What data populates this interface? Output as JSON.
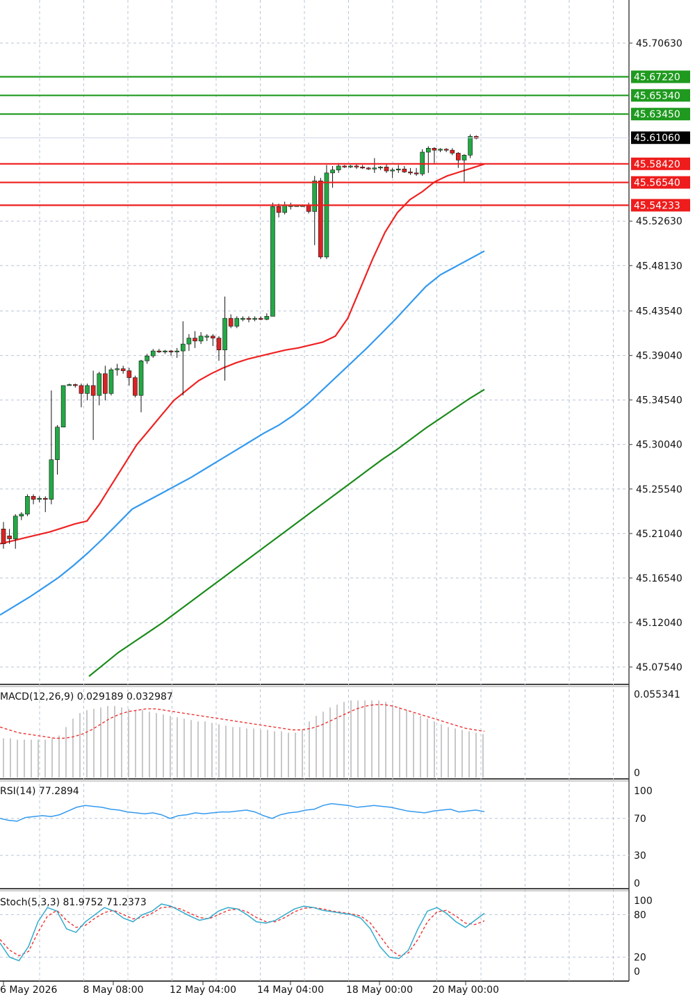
{
  "chart_data": {
    "type": "candlestick",
    "main": {
      "price_ticks": [
        "45.70630",
        "45.52630",
        "45.48130",
        "45.43540",
        "45.39040",
        "45.34540",
        "45.30040",
        "45.25540",
        "45.21040",
        "45.16540",
        "45.12040",
        "45.07540"
      ],
      "ylim": [
        45.05,
        45.75
      ],
      "candles": [
        {
          "o": 45.215,
          "h": 45.222,
          "l": 45.195,
          "c": 45.2
        },
        {
          "o": 45.208,
          "h": 45.215,
          "l": 45.2,
          "c": 45.205
        },
        {
          "o": 45.205,
          "h": 45.23,
          "l": 45.195,
          "c": 45.228
        },
        {
          "o": 45.228,
          "h": 45.232,
          "l": 45.224,
          "c": 45.23
        },
        {
          "o": 45.23,
          "h": 45.25,
          "l": 45.228,
          "c": 45.248
        },
        {
          "o": 45.248,
          "h": 45.25,
          "l": 45.24,
          "c": 45.245
        },
        {
          "o": 45.245,
          "h": 45.248,
          "l": 45.242,
          "c": 45.246
        },
        {
          "o": 45.246,
          "h": 45.248,
          "l": 45.232,
          "c": 45.245
        },
        {
          "o": 45.245,
          "h": 45.355,
          "l": 45.24,
          "c": 45.285
        },
        {
          "o": 45.285,
          "h": 45.32,
          "l": 45.27,
          "c": 45.318
        },
        {
          "o": 45.318,
          "h": 45.36,
          "l": 45.318,
          "c": 45.36
        },
        {
          "o": 45.36,
          "h": 45.362,
          "l": 45.36,
          "c": 45.361
        },
        {
          "o": 45.361,
          "h": 45.362,
          "l": 45.358,
          "c": 45.36
        },
        {
          "o": 45.36,
          "h": 45.362,
          "l": 45.338,
          "c": 45.352
        },
        {
          "o": 45.352,
          "h": 45.362,
          "l": 45.345,
          "c": 45.36
        },
        {
          "o": 45.36,
          "h": 45.375,
          "l": 45.305,
          "c": 45.35
        },
        {
          "o": 45.35,
          "h": 45.374,
          "l": 45.34,
          "c": 45.372
        },
        {
          "o": 45.372,
          "h": 45.38,
          "l": 45.345,
          "c": 45.352
        },
        {
          "o": 45.352,
          "h": 45.378,
          "l": 45.35,
          "c": 45.376
        },
        {
          "o": 45.376,
          "h": 45.382,
          "l": 45.37,
          "c": 45.377
        },
        {
          "o": 45.377,
          "h": 45.38,
          "l": 45.372,
          "c": 45.375
        },
        {
          "o": 45.375,
          "h": 45.378,
          "l": 45.36,
          "c": 45.368
        },
        {
          "o": 45.368,
          "h": 45.37,
          "l": 45.348,
          "c": 45.35
        },
        {
          "o": 45.35,
          "h": 45.386,
          "l": 45.333,
          "c": 45.385
        },
        {
          "o": 45.385,
          "h": 45.392,
          "l": 45.382,
          "c": 45.39
        },
        {
          "o": 45.39,
          "h": 45.397,
          "l": 45.388,
          "c": 45.395
        },
        {
          "o": 45.395,
          "h": 45.397,
          "l": 45.393,
          "c": 45.394
        },
        {
          "o": 45.394,
          "h": 45.396,
          "l": 45.392,
          "c": 45.395
        },
        {
          "o": 45.395,
          "h": 45.396,
          "l": 45.39,
          "c": 45.394
        },
        {
          "o": 45.394,
          "h": 45.398,
          "l": 45.388,
          "c": 45.395
        },
        {
          "o": 45.395,
          "h": 45.425,
          "l": 45.35,
          "c": 45.402
        },
        {
          "o": 45.402,
          "h": 45.412,
          "l": 45.395,
          "c": 45.408
        },
        {
          "o": 45.408,
          "h": 45.415,
          "l": 45.398,
          "c": 45.405
        },
        {
          "o": 45.405,
          "h": 45.414,
          "l": 45.402,
          "c": 45.41
        },
        {
          "o": 45.41,
          "h": 45.412,
          "l": 45.405,
          "c": 45.41
        },
        {
          "o": 45.41,
          "h": 45.412,
          "l": 45.4,
          "c": 45.408
        },
        {
          "o": 45.408,
          "h": 45.41,
          "l": 45.385,
          "c": 45.396
        },
        {
          "o": 45.396,
          "h": 45.45,
          "l": 45.365,
          "c": 45.428
        },
        {
          "o": 45.428,
          "h": 45.432,
          "l": 45.418,
          "c": 45.42
        },
        {
          "o": 45.42,
          "h": 45.43,
          "l": 45.418,
          "c": 45.428
        },
        {
          "o": 45.428,
          "h": 45.43,
          "l": 45.425,
          "c": 45.428
        },
        {
          "o": 45.428,
          "h": 45.43,
          "l": 45.424,
          "c": 45.427
        },
        {
          "o": 45.427,
          "h": 45.43,
          "l": 45.425,
          "c": 45.428
        },
        {
          "o": 45.428,
          "h": 45.43,
          "l": 45.426,
          "c": 45.427
        },
        {
          "o": 45.427,
          "h": 45.433,
          "l": 45.426,
          "c": 45.43
        },
        {
          "o": 45.43,
          "h": 45.545,
          "l": 45.43,
          "c": 45.541
        },
        {
          "o": 45.541,
          "h": 45.544,
          "l": 45.53,
          "c": 45.535
        },
        {
          "o": 45.535,
          "h": 45.546,
          "l": 45.533,
          "c": 45.542
        },
        {
          "o": 45.542,
          "h": 45.545,
          "l": 45.538,
          "c": 45.542
        },
        {
          "o": 45.542,
          "h": 45.543,
          "l": 45.541,
          "c": 45.542
        },
        {
          "o": 45.542,
          "h": 45.543,
          "l": 45.541,
          "c": 45.542
        },
        {
          "o": 45.542,
          "h": 45.545,
          "l": 45.534,
          "c": 45.536
        },
        {
          "o": 45.536,
          "h": 45.572,
          "l": 45.502,
          "c": 45.567
        },
        {
          "o": 45.567,
          "h": 45.57,
          "l": 45.488,
          "c": 45.49
        },
        {
          "o": 45.49,
          "h": 45.583,
          "l": 45.488,
          "c": 45.575
        },
        {
          "o": 45.575,
          "h": 45.582,
          "l": 45.56,
          "c": 45.578
        },
        {
          "o": 45.578,
          "h": 45.585,
          "l": 45.575,
          "c": 45.582
        },
        {
          "o": 45.582,
          "h": 45.583,
          "l": 45.58,
          "c": 45.581
        },
        {
          "o": 45.581,
          "h": 45.583,
          "l": 45.58,
          "c": 45.582
        },
        {
          "o": 45.582,
          "h": 45.584,
          "l": 45.579,
          "c": 45.581
        },
        {
          "o": 45.581,
          "h": 45.583,
          "l": 45.579,
          "c": 45.58
        },
        {
          "o": 45.58,
          "h": 45.581,
          "l": 45.578,
          "c": 45.579
        },
        {
          "o": 45.579,
          "h": 45.59,
          "l": 45.575,
          "c": 45.58
        },
        {
          "o": 45.58,
          "h": 45.582,
          "l": 45.578,
          "c": 45.581
        },
        {
          "o": 45.581,
          "h": 45.584,
          "l": 45.575,
          "c": 45.577
        },
        {
          "o": 45.577,
          "h": 45.58,
          "l": 45.57,
          "c": 45.578
        },
        {
          "o": 45.578,
          "h": 45.583,
          "l": 45.575,
          "c": 45.579
        },
        {
          "o": 45.579,
          "h": 45.582,
          "l": 45.575,
          "c": 45.576
        },
        {
          "o": 45.576,
          "h": 45.58,
          "l": 45.573,
          "c": 45.575
        },
        {
          "o": 45.575,
          "h": 45.58,
          "l": 45.572,
          "c": 45.574
        },
        {
          "o": 45.574,
          "h": 45.599,
          "l": 45.572,
          "c": 45.596
        },
        {
          "o": 45.596,
          "h": 45.602,
          "l": 45.575,
          "c": 45.6
        },
        {
          "o": 45.6,
          "h": 45.601,
          "l": 45.585,
          "c": 45.598
        },
        {
          "o": 45.598,
          "h": 45.6,
          "l": 45.596,
          "c": 45.599
        },
        {
          "o": 45.599,
          "h": 45.6,
          "l": 45.596,
          "c": 45.598
        },
        {
          "o": 45.598,
          "h": 45.6,
          "l": 45.593,
          "c": 45.595
        },
        {
          "o": 45.595,
          "h": 45.596,
          "l": 45.58,
          "c": 45.588
        },
        {
          "o": 45.588,
          "h": 45.594,
          "l": 45.565,
          "c": 45.593
        },
        {
          "o": 45.593,
          "h": 45.614,
          "l": 45.59,
          "c": 45.612
        },
        {
          "o": 45.612,
          "h": 45.613,
          "l": 45.609,
          "c": 45.61
        }
      ],
      "ma_red": [
        45.2,
        45.203,
        45.206,
        45.209,
        45.212,
        45.216,
        45.22,
        45.223,
        45.24,
        45.26,
        45.28,
        45.3,
        45.315,
        45.33,
        45.345,
        45.355,
        45.365,
        45.372,
        45.378,
        45.383,
        45.387,
        45.39,
        45.393,
        45.396,
        45.398,
        45.401,
        45.404,
        45.41,
        45.428,
        45.458,
        45.488,
        45.515,
        45.535,
        45.548,
        45.556,
        45.566,
        45.572,
        45.576,
        45.58,
        45.584
      ],
      "ma_blue": [
        45.128,
        45.137,
        45.146,
        45.156,
        45.166,
        45.178,
        45.191,
        45.205,
        45.22,
        45.235,
        45.243,
        45.251,
        45.259,
        45.267,
        45.276,
        45.285,
        45.294,
        45.303,
        45.312,
        45.32,
        45.33,
        45.342,
        45.356,
        45.37,
        45.384,
        45.398,
        45.413,
        45.428,
        45.444,
        45.46,
        45.472,
        45.48,
        45.488,
        45.496
      ],
      "ma_green": [
        45.066,
        45.078,
        45.09,
        45.1,
        45.11,
        45.12,
        45.131,
        45.142,
        45.153,
        45.164,
        45.175,
        45.186,
        45.197,
        45.208,
        45.219,
        45.23,
        45.241,
        45.252,
        45.263,
        45.274,
        45.285,
        45.295,
        45.306,
        45.317,
        45.327,
        45.337,
        45.347,
        45.356
      ],
      "green_levels": [
        {
          "value": 45.6722,
          "label": "45.67220"
        },
        {
          "value": 45.6534,
          "label": "45.65340"
        },
        {
          "value": 45.6345,
          "label": "45.63450"
        }
      ],
      "red_levels": [
        {
          "value": 45.5842,
          "label": "45.58420"
        },
        {
          "value": 45.5654,
          "label": "45.56540"
        },
        {
          "value": 45.54233,
          "label": "45.54233"
        }
      ],
      "current": {
        "value": 45.6106,
        "label": "45.61060"
      }
    },
    "macd": {
      "title": "MACD(12,26,9) 0.029189 0.032987",
      "ticks": [
        "0.055341",
        "0"
      ],
      "ylim": [
        0,
        0.062
      ],
      "hist": [
        0.028,
        0.028,
        0.027,
        0.027,
        0.027,
        0.027,
        0.027,
        0.028,
        0.03,
        0.036,
        0.042,
        0.046,
        0.048,
        0.049,
        0.05,
        0.051,
        0.051,
        0.05,
        0.049,
        0.048,
        0.048,
        0.047,
        0.046,
        0.045,
        0.044,
        0.043,
        0.042,
        0.041,
        0.04,
        0.04,
        0.039,
        0.038,
        0.037,
        0.036,
        0.036,
        0.035,
        0.035,
        0.034,
        0.034,
        0.033,
        0.033,
        0.032,
        0.032,
        0.034,
        0.04,
        0.044,
        0.047,
        0.05,
        0.052,
        0.054,
        0.055,
        0.055,
        0.055,
        0.055,
        0.055,
        0.054,
        0.052,
        0.05,
        0.048,
        0.046,
        0.044,
        0.042,
        0.04,
        0.038,
        0.036,
        0.035,
        0.034,
        0.033,
        0.032,
        0.031
      ],
      "signal": [
        0.036,
        0.034,
        0.032,
        0.031,
        0.03,
        0.029,
        0.028,
        0.028,
        0.029,
        0.031,
        0.034,
        0.038,
        0.042,
        0.045,
        0.047,
        0.048,
        0.049,
        0.049,
        0.048,
        0.047,
        0.046,
        0.045,
        0.044,
        0.043,
        0.042,
        0.041,
        0.04,
        0.039,
        0.038,
        0.037,
        0.036,
        0.035,
        0.034,
        0.034,
        0.035,
        0.037,
        0.04,
        0.043,
        0.046,
        0.049,
        0.051,
        0.052,
        0.052,
        0.051,
        0.049,
        0.047,
        0.045,
        0.043,
        0.041,
        0.039,
        0.037,
        0.035,
        0.034,
        0.033
      ]
    },
    "rsi": {
      "title": "RSI(14) 77.2894",
      "ticks": [
        "100",
        "70",
        "30",
        "0"
      ],
      "ylim": [
        0,
        100
      ],
      "values": [
        70,
        68,
        67,
        71,
        72,
        73,
        72,
        74,
        78,
        82,
        84,
        83,
        82,
        80,
        79,
        77,
        76,
        75,
        76,
        74,
        70,
        73,
        74,
        76,
        75,
        76,
        77,
        77,
        78,
        79,
        77,
        73,
        70,
        74,
        76,
        77,
        79,
        80,
        84,
        86,
        85,
        84,
        82,
        83,
        84,
        83,
        82,
        80,
        78,
        77,
        76,
        78,
        79,
        80,
        77,
        78,
        79,
        77.3
      ]
    },
    "stoch": {
      "title": "Stoch(5,3,3) 81.9752 71.2373",
      "ticks": [
        "100",
        "80",
        "20",
        "0"
      ],
      "ylim": [
        0,
        100
      ],
      "k": [
        40,
        20,
        15,
        35,
        70,
        90,
        85,
        60,
        55,
        70,
        80,
        90,
        85,
        75,
        70,
        80,
        85,
        95,
        92,
        85,
        78,
        72,
        75,
        85,
        90,
        88,
        80,
        70,
        68,
        72,
        80,
        88,
        92,
        90,
        86,
        84,
        82,
        80,
        75,
        60,
        35,
        20,
        18,
        30,
        60,
        85,
        90,
        82,
        70,
        62,
        72,
        81.98
      ],
      "d": [
        45,
        30,
        22,
        28,
        55,
        78,
        86,
        72,
        62,
        65,
        75,
        83,
        86,
        80,
        74,
        76,
        82,
        90,
        91,
        88,
        82,
        76,
        74,
        80,
        86,
        88,
        84,
        76,
        70,
        70,
        76,
        84,
        89,
        90,
        88,
        85,
        83,
        81,
        78,
        68,
        50,
        32,
        22,
        26,
        45,
        70,
        84,
        86,
        78,
        68,
        66,
        71.24
      ]
    },
    "x_ticks": [
      "6 May 2026",
      "8 May 08:00",
      "12 May 04:00",
      "14 May 04:00",
      "18 May 00:00",
      "20 May 00:00"
    ]
  }
}
